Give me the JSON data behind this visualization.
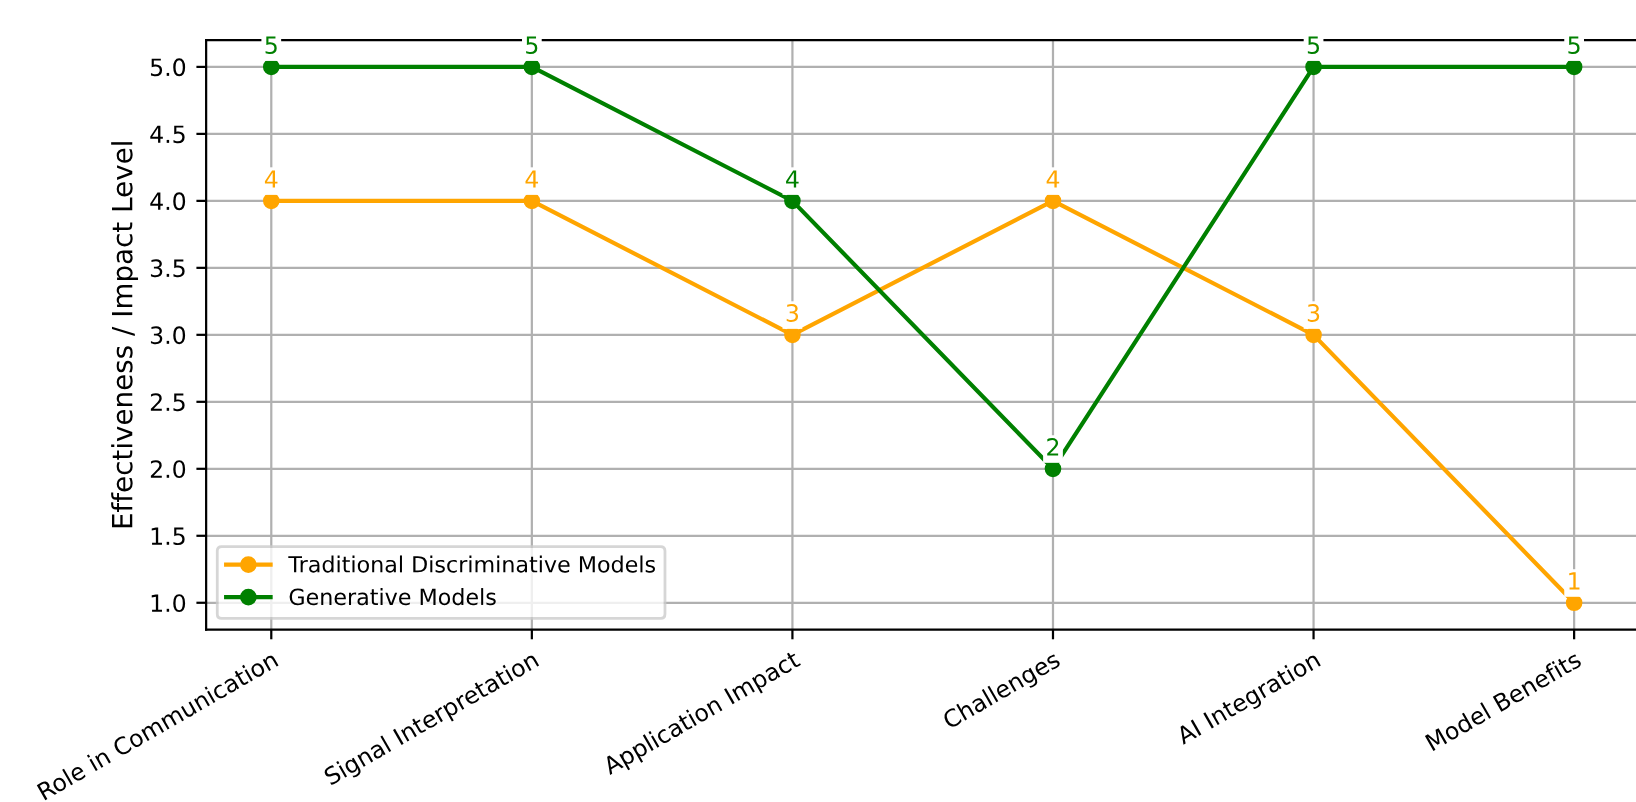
{
  "chart_data": {
    "type": "line",
    "ylabel": "Effectiveness / Impact Level",
    "categories": [
      "Role in Communication",
      "Signal Interpretation",
      "Application Impact",
      "Challenges",
      "AI Integration",
      "Model Benefits"
    ],
    "series": [
      {
        "name": "Traditional Discriminative Models",
        "color": "#ffa500",
        "values": [
          4,
          4,
          3,
          4,
          3,
          1
        ]
      },
      {
        "name": "Generative Models",
        "color": "#008000",
        "values": [
          5,
          5,
          4,
          2,
          5,
          5
        ]
      }
    ],
    "ylim": [
      0.8,
      5.2
    ],
    "yticks": [
      {
        "value": 1,
        "label": "1.0"
      },
      {
        "value": 1.5,
        "label": "1.5"
      },
      {
        "value": 2,
        "label": "2.0"
      },
      {
        "value": 2.5,
        "label": "2.5"
      },
      {
        "value": 3,
        "label": "3.0"
      },
      {
        "value": 3.5,
        "label": "3.5"
      },
      {
        "value": 4,
        "label": "4.0"
      },
      {
        "value": 4.5,
        "label": "4.5"
      },
      {
        "value": 5,
        "label": "5.0"
      }
    ],
    "grid": true,
    "legend": "bottom left",
    "marker": "circle",
    "line_style": "solid",
    "data_labels": true
  }
}
